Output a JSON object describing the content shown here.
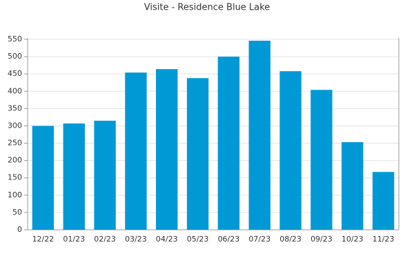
{
  "chart_data": {
    "type": "bar",
    "title": "Visite - Residence Blue Lake",
    "categories": [
      "12/22",
      "01/23",
      "02/23",
      "03/23",
      "04/23",
      "05/23",
      "06/23",
      "07/23",
      "08/23",
      "09/23",
      "10/23",
      "11/23"
    ],
    "values": [
      300,
      307,
      315,
      454,
      464,
      438,
      500,
      546,
      458,
      404,
      253,
      167
    ],
    "color": "#0099d6",
    "ylim": [
      0,
      550
    ],
    "yticks": [
      0,
      50,
      100,
      150,
      200,
      250,
      300,
      350,
      400,
      450,
      500,
      550
    ],
    "grid": true
  }
}
